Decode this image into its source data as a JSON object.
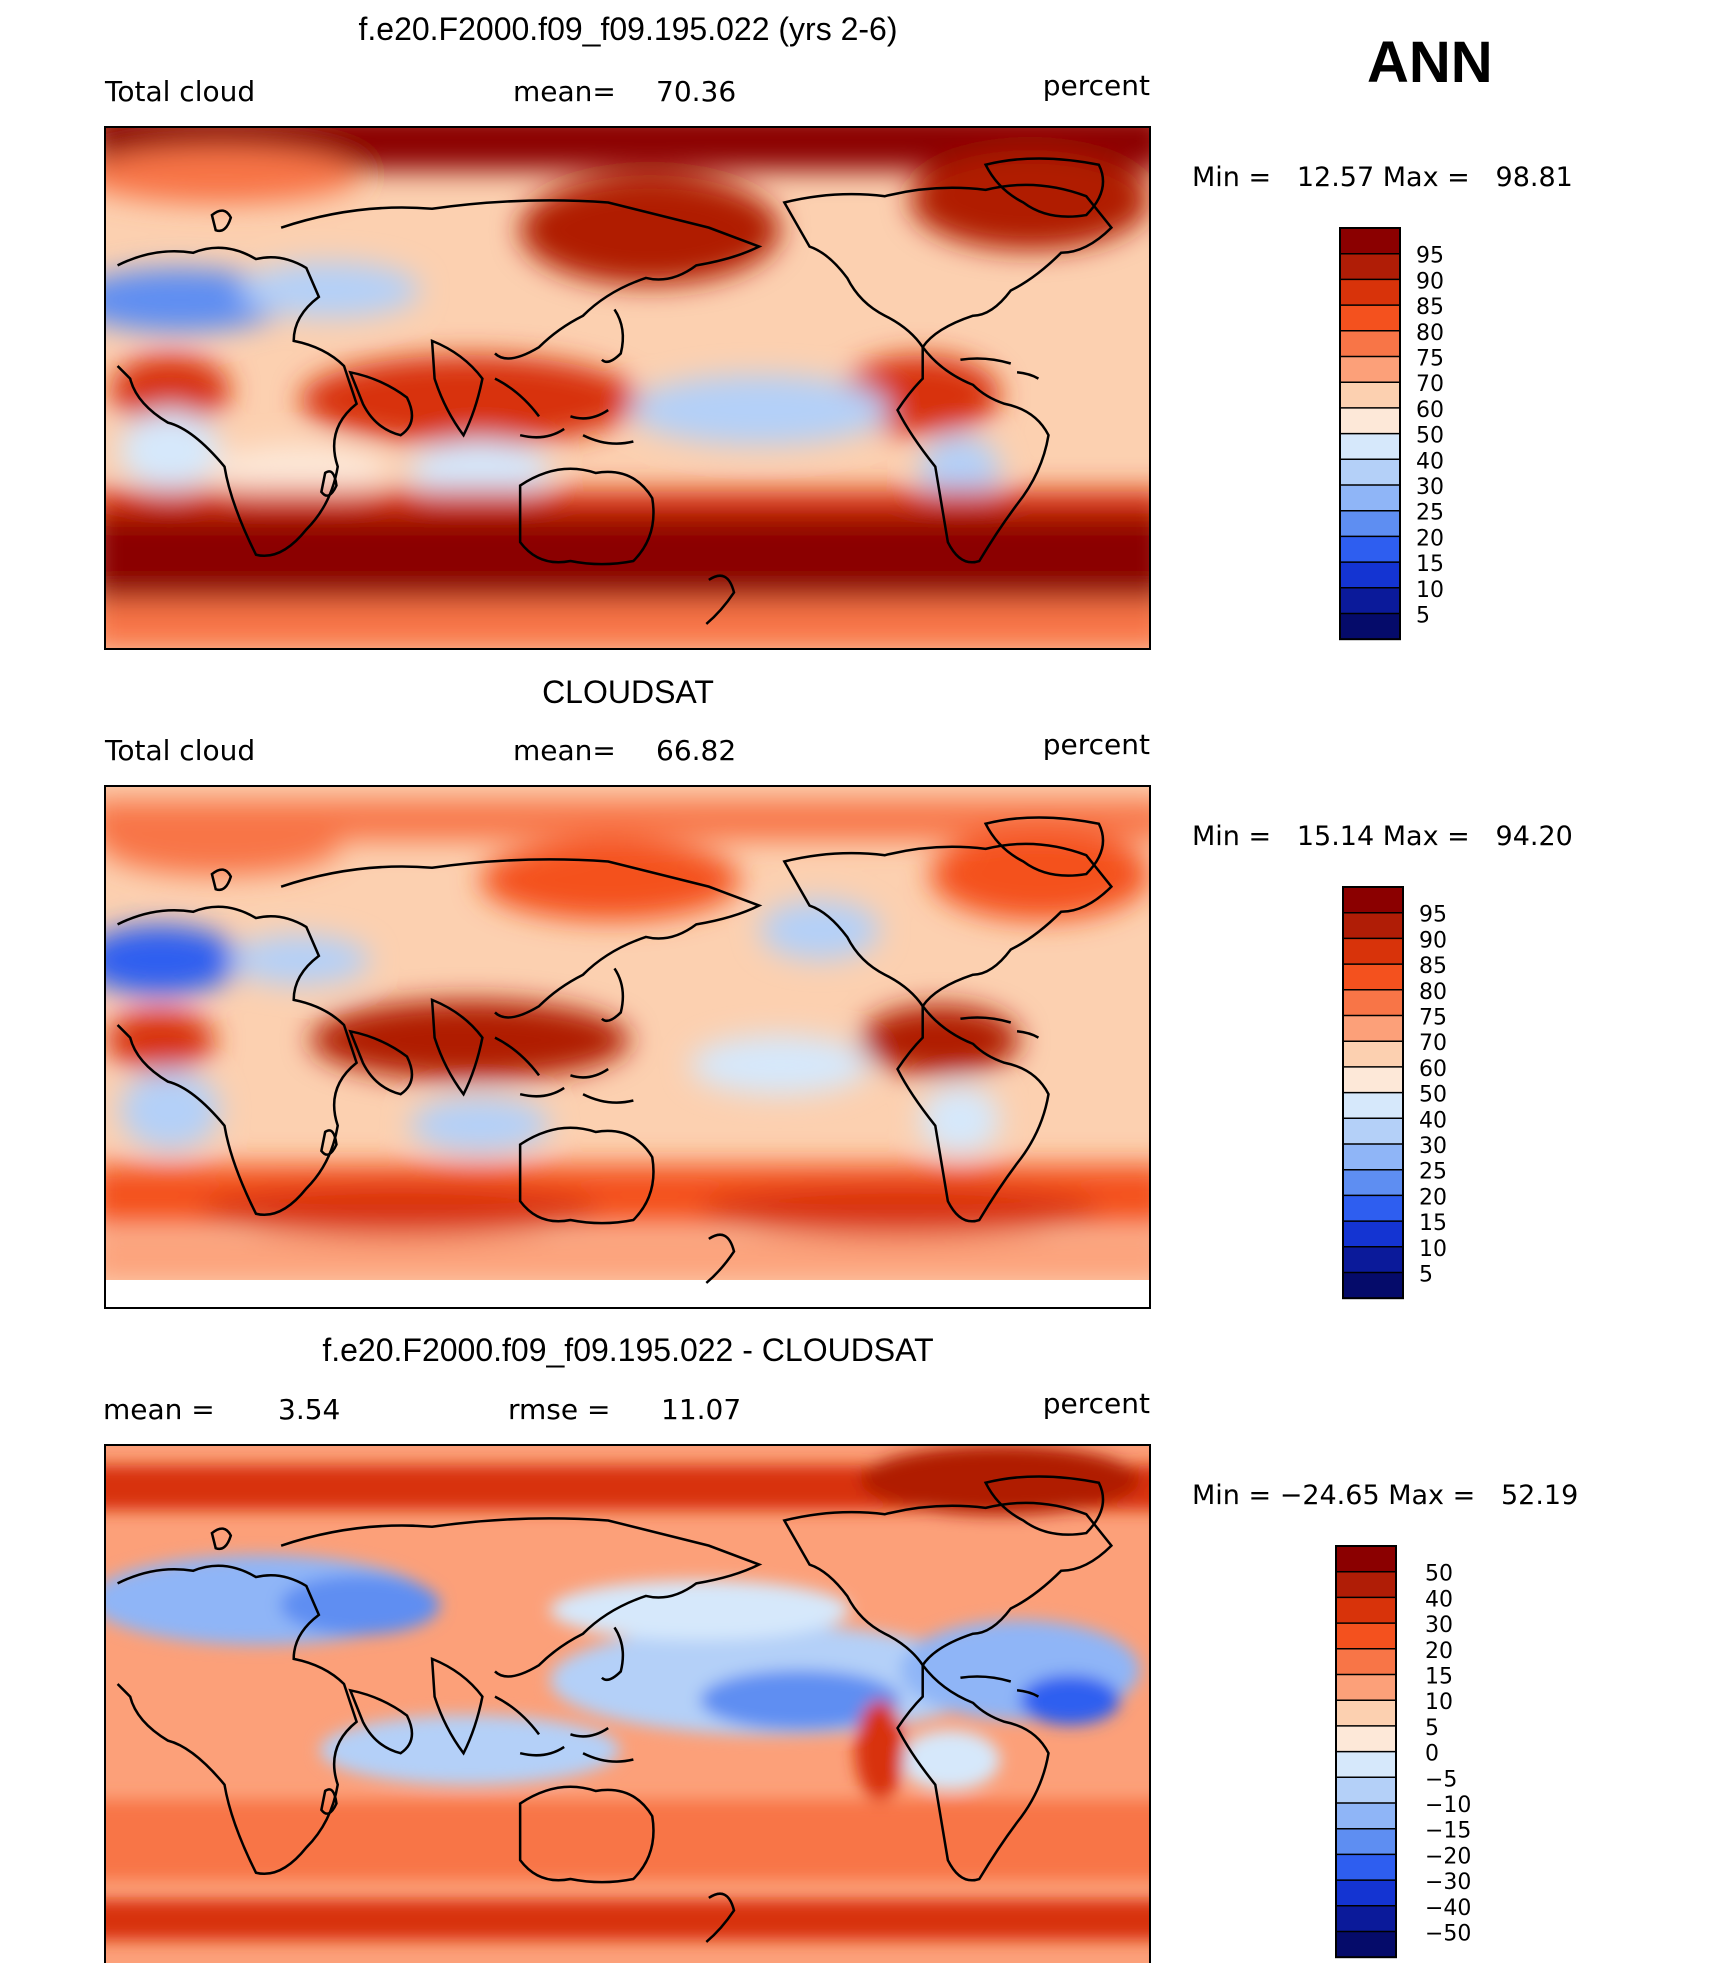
{
  "season_label": "ANN",
  "panels": [
    {
      "id": "model",
      "title": "f.e20.F2000.f09_f09.195.022 (yrs 2-6)",
      "left_label": "Total cloud",
      "mean_label": "mean=",
      "mean_value": "70.36",
      "units": "percent",
      "min_max_text": "Min =   12.57 Max =   98.81",
      "colorbar": {
        "labels": [
          "95",
          "90",
          "85",
          "80",
          "75",
          "70",
          "60",
          "50",
          "40",
          "30",
          "25",
          "20",
          "15",
          "10",
          "5"
        ],
        "colors": [
          "#8b0000",
          "#b01d06",
          "#d8330a",
          "#f4511e",
          "#f87547",
          "#fca079",
          "#fcd0b0",
          "#fde8d8",
          "#d6e8fb",
          "#b4d0f8",
          "#8fb5f7",
          "#5e8ef2",
          "#2e5ef0",
          "#1434d2",
          "#0b1a9a",
          "#050b6a"
        ]
      }
    },
    {
      "id": "obs",
      "title": "CLOUDSAT",
      "left_label": "Total cloud",
      "mean_label": "mean=",
      "mean_value": "66.82",
      "units": "percent",
      "min_max_text": "Min =   15.14 Max =   94.20",
      "colorbar": {
        "labels": [
          "95",
          "90",
          "85",
          "80",
          "75",
          "70",
          "60",
          "50",
          "40",
          "30",
          "25",
          "20",
          "15",
          "10",
          "5"
        ],
        "colors": [
          "#8b0000",
          "#b01d06",
          "#d8330a",
          "#f4511e",
          "#f87547",
          "#fca079",
          "#fcd0b0",
          "#fde8d8",
          "#d6e8fb",
          "#b4d0f8",
          "#8fb5f7",
          "#5e8ef2",
          "#2e5ef0",
          "#1434d2",
          "#0b1a9a",
          "#050b6a"
        ]
      }
    },
    {
      "id": "diff",
      "title": "f.e20.F2000.f09_f09.195.022 - CLOUDSAT",
      "left_label": "mean =",
      "left_value": "3.54",
      "mean_label": "rmse =",
      "mean_value": "11.07",
      "units": "percent",
      "min_max_text": "Min = −24.65 Max =   52.19",
      "colorbar": {
        "labels": [
          "50",
          "40",
          "30",
          "20",
          "15",
          "10",
          "5",
          "0",
          "−5",
          "−10",
          "−15",
          "−20",
          "−30",
          "−40",
          "−50"
        ],
        "colors": [
          "#8b0000",
          "#b01d06",
          "#d8330a",
          "#f4511e",
          "#f87547",
          "#fca079",
          "#fcd0b0",
          "#fde8d8",
          "#d6e8fb",
          "#b4d0f8",
          "#8fb5f7",
          "#5e8ef2",
          "#2e5ef0",
          "#1434d2",
          "#0b1a9a",
          "#050b6a"
        ]
      }
    }
  ],
  "chart_data": [
    {
      "type": "heatmap",
      "title": "f.e20.F2000.f09_f09.195.022 (yrs 2-6)",
      "variable": "Total cloud",
      "units": "percent",
      "mean": 70.36,
      "min": 12.57,
      "max": 98.81,
      "contour_levels": [
        5,
        10,
        15,
        20,
        25,
        30,
        40,
        50,
        60,
        70,
        75,
        80,
        85,
        90,
        95
      ],
      "period": "ANN"
    },
    {
      "type": "heatmap",
      "title": "CLOUDSAT",
      "variable": "Total cloud",
      "units": "percent",
      "mean": 66.82,
      "min": 15.14,
      "max": 94.2,
      "contour_levels": [
        5,
        10,
        15,
        20,
        25,
        30,
        40,
        50,
        60,
        70,
        75,
        80,
        85,
        90,
        95
      ],
      "period": "ANN"
    },
    {
      "type": "heatmap",
      "title": "f.e20.F2000.f09_f09.195.022 - CLOUDSAT",
      "units": "percent",
      "mean": 3.54,
      "rmse": 11.07,
      "min": -24.65,
      "max": 52.19,
      "contour_levels": [
        -50,
        -40,
        -30,
        -20,
        -15,
        -10,
        -5,
        0,
        5,
        10,
        15,
        20,
        30,
        40,
        50
      ],
      "period": "ANN"
    }
  ]
}
